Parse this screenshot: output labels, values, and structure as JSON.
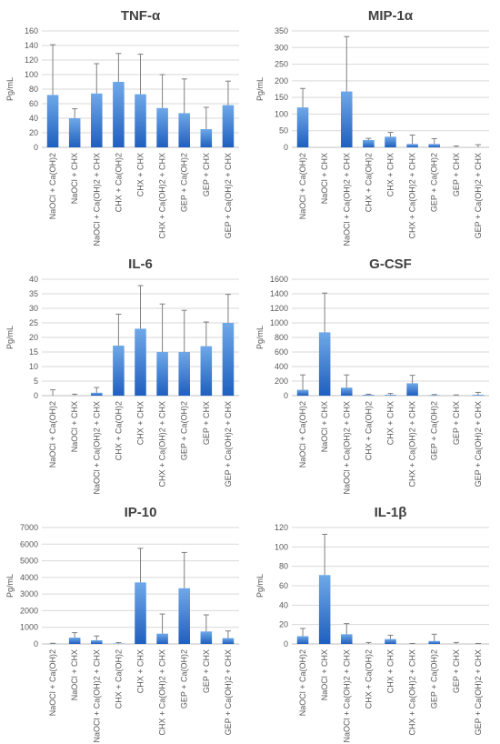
{
  "chart_data": [
    {
      "type": "bar",
      "title": "TNF-α",
      "ylabel": "Pg/mL",
      "ylim": [
        0,
        160
      ],
      "yticks": [
        0,
        20,
        40,
        60,
        80,
        100,
        120,
        140,
        160
      ],
      "categories": [
        "NaOCl + Ca(OH)2",
        "NaOCl + CHX",
        "NaOCl + Ca(OH)2 + CHX",
        "CHX + Ca(OH)2",
        "CHX + CHX",
        "CHX + Ca(OH)2 + CHX",
        "GEP + Ca(OH)2",
        "GEP + CHX",
        "GEP + Ca(OH)2 + CHX"
      ],
      "values": [
        72,
        40,
        74,
        90,
        73,
        54,
        47,
        25,
        58
      ],
      "error_upper": [
        141,
        53,
        115,
        129,
        128,
        100,
        94,
        55,
        91
      ],
      "grid": true
    },
    {
      "type": "bar",
      "title": "MIP-1α",
      "ylabel": "Pg/mL",
      "ylim": [
        0,
        350
      ],
      "yticks": [
        0,
        50,
        100,
        150,
        200,
        250,
        300,
        350
      ],
      "categories": [
        "NaOCl + Ca(OH)2",
        "NaOCl + CHX",
        "NaOCl + Ca(OH)2 + CHX",
        "CHX + Ca(OH)2",
        "CHX + CHX",
        "CHX + Ca(OH)2 + CHX",
        "GEP + Ca(OH)2",
        "GEP + CHX",
        "GEP + Ca(OH)2 + CHX"
      ],
      "values": [
        120,
        0,
        168,
        22,
        32,
        10,
        10,
        0,
        0
      ],
      "error_upper": [
        177,
        0,
        333,
        27,
        45,
        37,
        26,
        4,
        8
      ],
      "grid": true
    },
    {
      "type": "bar",
      "title": "IL-6",
      "ylabel": "Pg/mL",
      "ylim": [
        0,
        40
      ],
      "yticks": [
        0,
        5,
        10,
        15,
        20,
        25,
        30,
        35,
        40
      ],
      "categories": [
        "NaOCl + Ca(OH)2",
        "NaOCl + CHX",
        "NaOCl + Ca(OH)2 + CHX",
        "CHX + Ca(OH)2",
        "CHX + CHX",
        "CHX + Ca(OH)2 + CHX",
        "GEP + Ca(OH)2",
        "GEP + CHX",
        "GEP + Ca(OH)2 + CHX"
      ],
      "values": [
        0,
        0,
        1,
        17.2,
        23,
        15,
        15,
        17,
        25
      ],
      "error_upper": [
        2,
        0.5,
        2.8,
        28,
        37.8,
        31.5,
        29.3,
        25.3,
        34.8
      ],
      "grid": true
    },
    {
      "type": "bar",
      "title": "G-CSF",
      "ylabel": "Pg/mL",
      "ylim": [
        0,
        1600
      ],
      "yticks": [
        0,
        200,
        400,
        600,
        800,
        1000,
        1200,
        1400,
        1600
      ],
      "categories": [
        "NaOCl + Ca(OH)2",
        "NaOCl + CHX",
        "NaOCl + Ca(OH)2 + CHX",
        "CHX + Ca(OH)2",
        "CHX + CHX",
        "CHX + Ca(OH)2 + CHX",
        "GEP + Ca(OH)2",
        "GEP + CHX",
        "GEP + Ca(OH)2 + CHX"
      ],
      "values": [
        80,
        870,
        110,
        10,
        10,
        170,
        5,
        0,
        10
      ],
      "error_upper": [
        285,
        1410,
        285,
        20,
        30,
        280,
        15,
        10,
        45
      ],
      "grid": true
    },
    {
      "type": "bar",
      "title": "IP-10",
      "ylabel": "Pg/mL",
      "ylim": [
        0,
        7000
      ],
      "yticks": [
        0,
        1000,
        2000,
        3000,
        4000,
        5000,
        6000,
        7000
      ],
      "categories": [
        "NaOCl + Ca(OH)2",
        "NaOCl + CHX",
        "NaOCl + Ca(OH)2 + CHX",
        "CHX + Ca(OH)2",
        "CHX + CHX",
        "CHX + Ca(OH)2 + CHX",
        "GEP + Ca(OH)2",
        "GEP + CHX",
        "GEP + Ca(OH)2 + CHX"
      ],
      "values": [
        10,
        380,
        220,
        20,
        3700,
        620,
        3350,
        750,
        350
      ],
      "error_upper": [
        40,
        680,
        480,
        80,
        5750,
        1800,
        5500,
        1750,
        780
      ],
      "grid": true
    },
    {
      "type": "bar",
      "title": "IL-1β",
      "ylabel": "Pg/mL",
      "ylim": [
        0,
        120
      ],
      "yticks": [
        0,
        20,
        40,
        60,
        80,
        100,
        120
      ],
      "categories": [
        "NaOCl + Ca(OH)2",
        "NaOCl + CHX",
        "NaOCl + Ca(OH)2 + CHX",
        "CHX + Ca(OH)2",
        "CHX + CHX",
        "CHX + Ca(OH)2 + CHX",
        "GEP + Ca(OH)2",
        "GEP + CHX",
        "GEP + Ca(OH)2 + CHX"
      ],
      "values": [
        8,
        71,
        10,
        0,
        5,
        0,
        3,
        0,
        0
      ],
      "error_upper": [
        16,
        113,
        21,
        1.5,
        9,
        0.5,
        10,
        1.5,
        0.5
      ],
      "grid": true
    }
  ],
  "colors": {
    "bar_top": "#6fa8e8",
    "bar_bottom": "#1f5fbf",
    "grid": "#d9d9d9",
    "axis": "#bfbfbf",
    "text": "#595959",
    "title": "#404040",
    "error": "#7f7f7f"
  }
}
